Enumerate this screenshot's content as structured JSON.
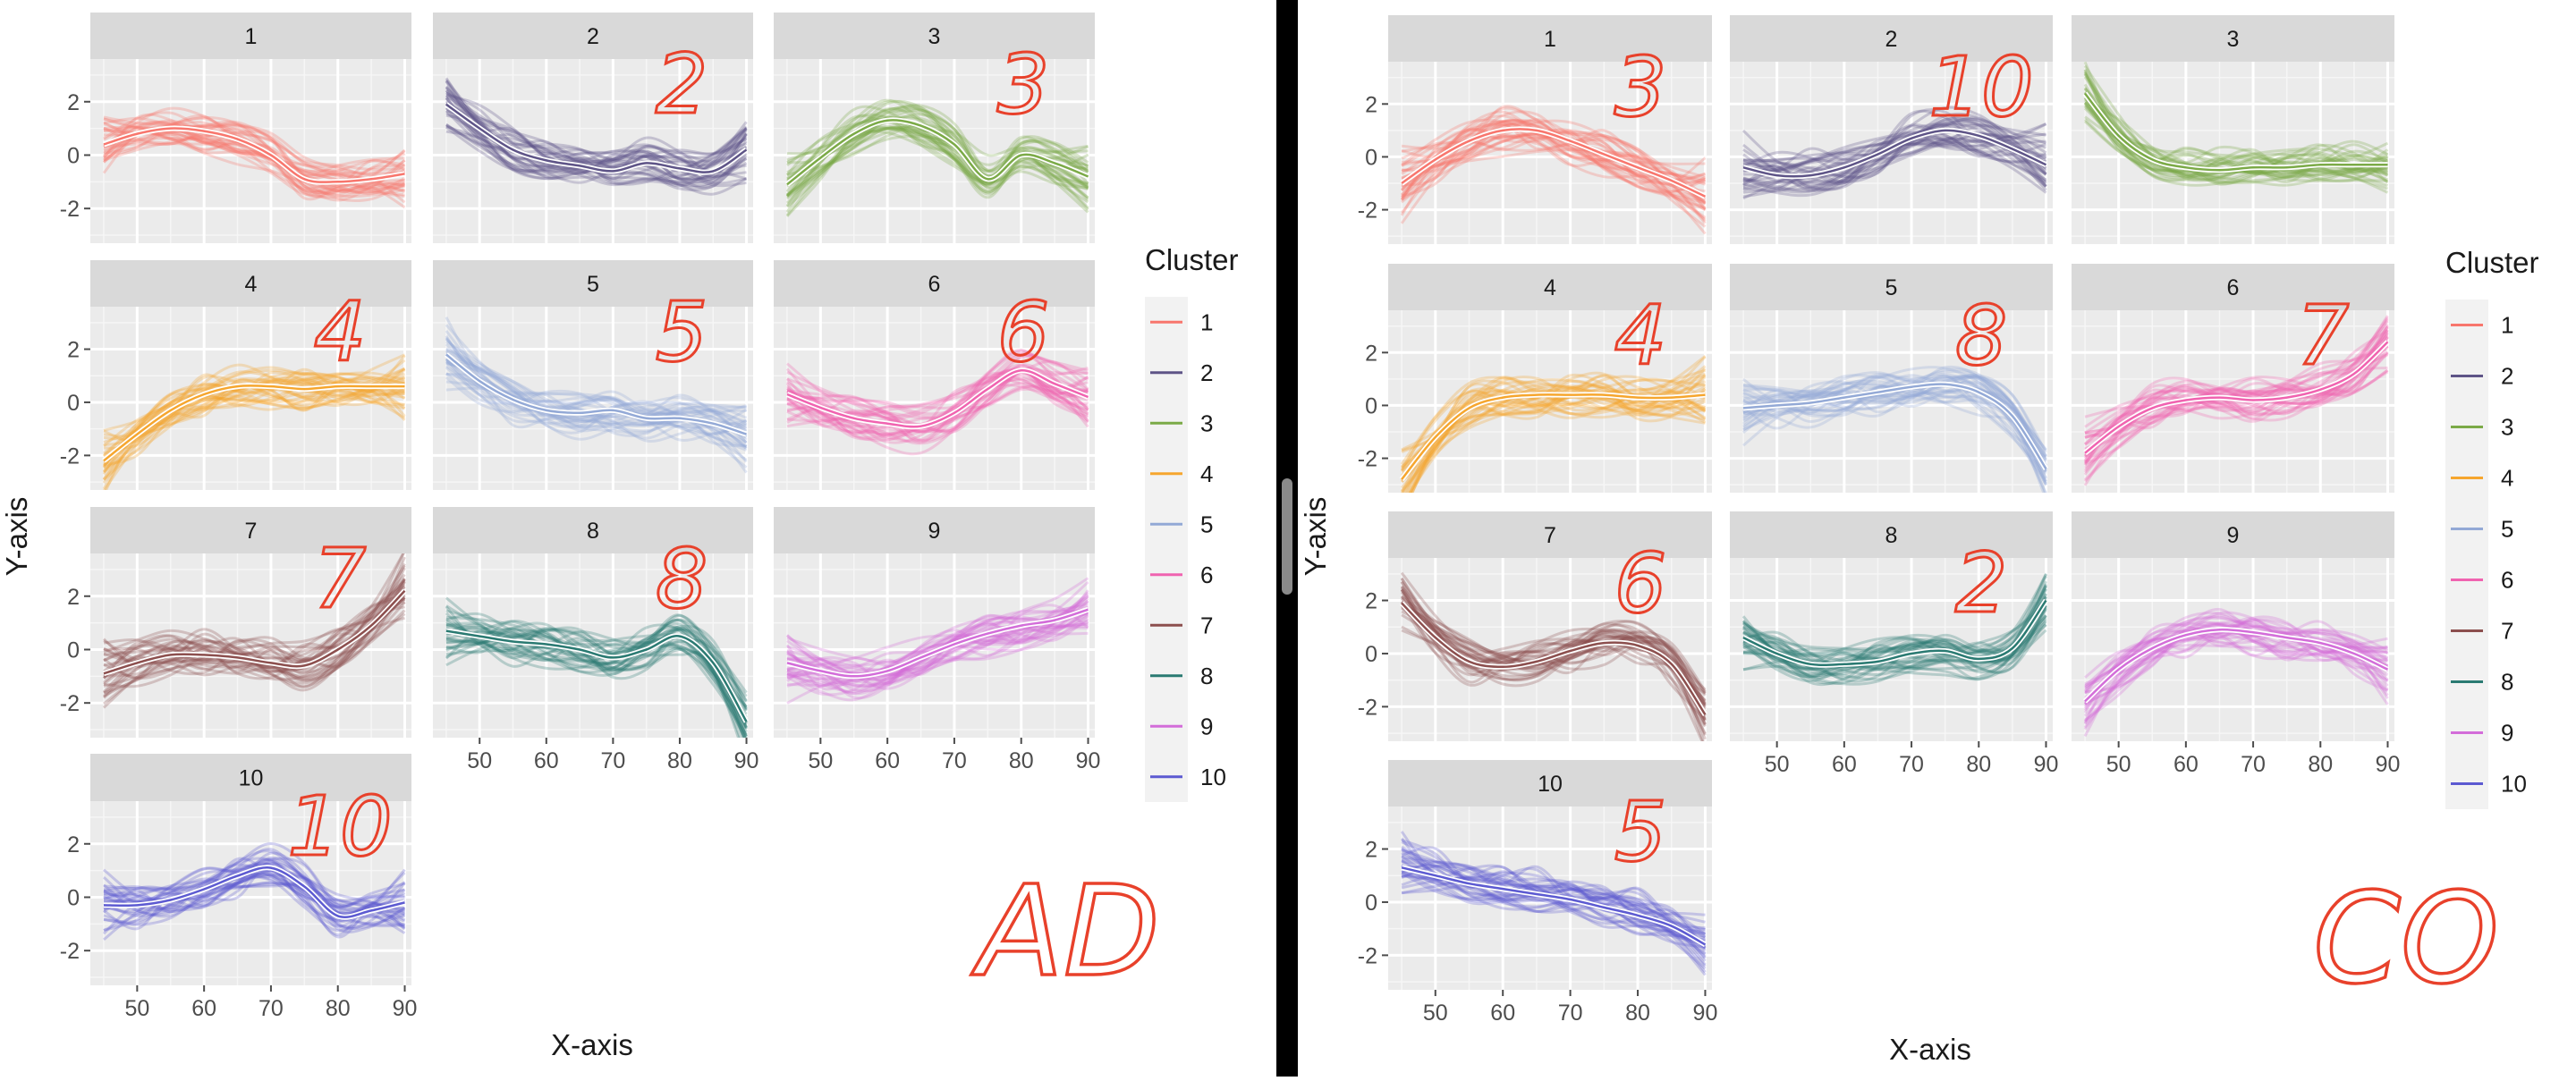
{
  "colors": {
    "1": "#F8766D",
    "2": "#5E5487",
    "3": "#7BAA47",
    "4": "#F6A62E",
    "5": "#93A9D6",
    "6": "#F063B0",
    "7": "#8C4F4E",
    "8": "#2A7A72",
    "9": "#D36DD9",
    "10": "#5C5AD1",
    "annotation": "#E8412B",
    "divider": "#000000",
    "panel_bg": "#EBEBEB",
    "strip_bg": "#D9D9D9"
  },
  "chart_data": [
    {
      "type": "line",
      "group": "AD",
      "xlabel": "X-axis",
      "ylabel": "Y-axis",
      "x_ticks": [
        50,
        60,
        70,
        80,
        90
      ],
      "y_ticks": [
        -2,
        0,
        2
      ],
      "xlim": [
        43,
        91
      ],
      "ylim": [
        -3.3,
        3.6
      ],
      "legend": {
        "title": "Cluster",
        "position": "right",
        "labels": [
          "1",
          "2",
          "3",
          "4",
          "5",
          "6",
          "7",
          "8",
          "9",
          "10"
        ]
      },
      "x": [
        45,
        50,
        55,
        60,
        65,
        70,
        75,
        80,
        85,
        90
      ],
      "panels": [
        {
          "cluster": "1",
          "strip": "1",
          "annotation": "",
          "mean": [
            0.4,
            0.8,
            1.0,
            0.9,
            0.6,
            0.0,
            -0.9,
            -1.0,
            -0.9,
            -0.7
          ]
        },
        {
          "cluster": "2",
          "strip": "2",
          "annotation": "2",
          "mean": [
            1.9,
            1.0,
            0.2,
            -0.2,
            -0.4,
            -0.6,
            -0.3,
            -0.5,
            -0.6,
            0.2
          ]
        },
        {
          "cluster": "3",
          "strip": "3",
          "annotation": "3",
          "mean": [
            -1.1,
            -0.1,
            0.8,
            1.3,
            1.1,
            0.4,
            -0.9,
            0.0,
            -0.3,
            -0.8
          ]
        },
        {
          "cluster": "4",
          "strip": "4",
          "annotation": "4",
          "mean": [
            -2.2,
            -1.2,
            -0.3,
            0.3,
            0.6,
            0.6,
            0.5,
            0.6,
            0.6,
            0.6
          ]
        },
        {
          "cluster": "5",
          "strip": "5",
          "annotation": "5",
          "mean": [
            1.8,
            0.8,
            0.1,
            -0.3,
            -0.4,
            -0.3,
            -0.6,
            -0.6,
            -0.8,
            -1.2
          ]
        },
        {
          "cluster": "6",
          "strip": "6",
          "annotation": "6",
          "mean": [
            0.3,
            -0.2,
            -0.6,
            -0.8,
            -0.9,
            -0.4,
            0.5,
            1.2,
            0.7,
            0.2
          ]
        },
        {
          "cluster": "7",
          "strip": "7",
          "annotation": "7",
          "mean": [
            -0.9,
            -0.5,
            -0.2,
            -0.2,
            -0.3,
            -0.5,
            -0.6,
            0.0,
            0.9,
            2.2
          ]
        },
        {
          "cluster": "8",
          "strip": "8",
          "annotation": "8",
          "mean": [
            0.7,
            0.5,
            0.3,
            0.2,
            0.0,
            -0.3,
            0.0,
            0.5,
            -0.5,
            -2.7
          ]
        },
        {
          "cluster": "9",
          "strip": "9",
          "annotation": "",
          "mean": [
            -0.5,
            -0.8,
            -1.0,
            -0.8,
            -0.3,
            0.2,
            0.6,
            0.9,
            1.1,
            1.5
          ]
        },
        {
          "cluster": "10",
          "strip": "10",
          "annotation": "10",
          "mean": [
            -0.3,
            -0.3,
            -0.1,
            0.3,
            0.8,
            1.1,
            0.4,
            -0.7,
            -0.5,
            -0.2
          ]
        }
      ],
      "corner_annotation": "AD"
    },
    {
      "type": "line",
      "group": "CO",
      "xlabel": "X-axis",
      "ylabel": "Y-axis",
      "x_ticks": [
        50,
        60,
        70,
        80,
        90
      ],
      "y_ticks": [
        -2,
        0,
        2
      ],
      "xlim": [
        43,
        91
      ],
      "ylim": [
        -3.3,
        3.6
      ],
      "legend": {
        "title": "Cluster",
        "position": "right",
        "labels": [
          "1",
          "2",
          "3",
          "4",
          "5",
          "6",
          "7",
          "8",
          "9",
          "10"
        ]
      },
      "x": [
        45,
        50,
        55,
        60,
        65,
        70,
        75,
        80,
        85,
        90
      ],
      "panels": [
        {
          "cluster": "1",
          "strip": "1",
          "annotation": "3",
          "mean": [
            -1.0,
            -0.1,
            0.6,
            1.0,
            1.0,
            0.6,
            0.1,
            -0.4,
            -0.9,
            -1.5
          ]
        },
        {
          "cluster": "2",
          "strip": "2",
          "annotation": "10",
          "mean": [
            -0.4,
            -0.7,
            -0.7,
            -0.4,
            0.1,
            0.7,
            1.0,
            0.8,
            0.3,
            -0.3
          ]
        },
        {
          "cluster": "3",
          "strip": "3",
          "annotation": "",
          "mean": [
            2.4,
            0.8,
            -0.1,
            -0.4,
            -0.5,
            -0.4,
            -0.4,
            -0.3,
            -0.3,
            -0.3
          ]
        },
        {
          "cluster": "4",
          "strip": "4",
          "annotation": "4",
          "mean": [
            -2.8,
            -1.2,
            -0.1,
            0.3,
            0.4,
            0.4,
            0.4,
            0.3,
            0.3,
            0.4
          ]
        },
        {
          "cluster": "5",
          "strip": "5",
          "annotation": "8",
          "mean": [
            -0.1,
            0.0,
            0.1,
            0.3,
            0.5,
            0.7,
            0.8,
            0.5,
            -0.4,
            -2.4
          ]
        },
        {
          "cluster": "6",
          "strip": "6",
          "annotation": "7",
          "mean": [
            -1.8,
            -0.8,
            -0.1,
            0.2,
            0.3,
            0.2,
            0.3,
            0.6,
            1.2,
            2.4
          ]
        },
        {
          "cluster": "7",
          "strip": "7",
          "annotation": "6",
          "mean": [
            1.9,
            0.6,
            -0.3,
            -0.5,
            -0.3,
            0.1,
            0.4,
            0.3,
            -0.4,
            -2.3
          ]
        },
        {
          "cluster": "8",
          "strip": "8",
          "annotation": "2",
          "mean": [
            0.6,
            0.0,
            -0.4,
            -0.4,
            -0.3,
            0.0,
            0.1,
            -0.2,
            0.2,
            2.0
          ]
        },
        {
          "cluster": "9",
          "strip": "9",
          "annotation": "",
          "mean": [
            -1.8,
            -0.6,
            0.2,
            0.7,
            0.9,
            0.8,
            0.6,
            0.4,
            0.0,
            -0.6
          ]
        },
        {
          "cluster": "10",
          "strip": "10",
          "annotation": "5",
          "mean": [
            1.3,
            1.0,
            0.7,
            0.5,
            0.3,
            0.1,
            -0.2,
            -0.5,
            -0.9,
            -1.6
          ]
        }
      ],
      "corner_annotation": "CO"
    }
  ]
}
